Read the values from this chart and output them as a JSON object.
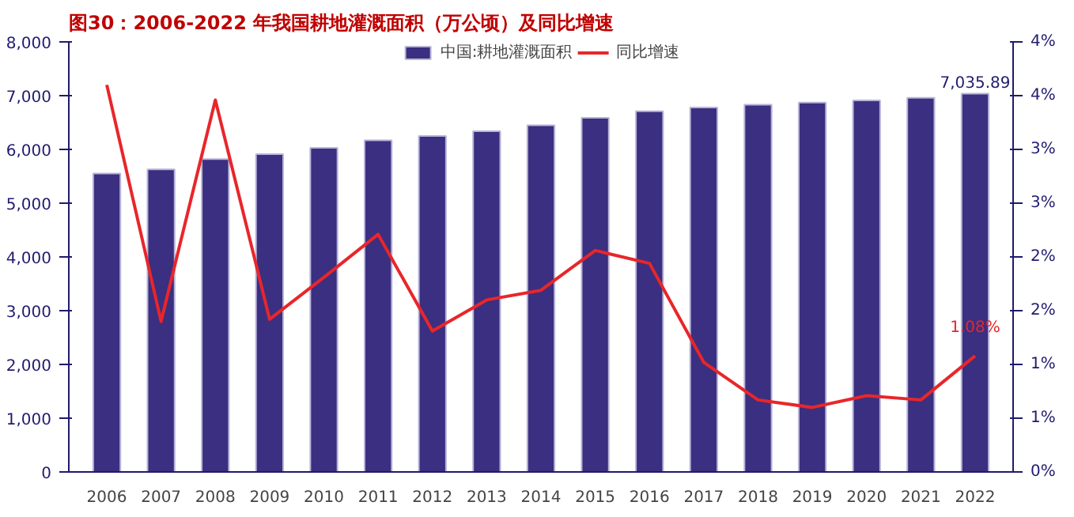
{
  "chart_data": {
    "type": "bar",
    "title": "图30：2006-2022 年我国耕地灌溉面积（万公顷）及同比增速",
    "categories": [
      "2006",
      "2007",
      "2008",
      "2009",
      "2010",
      "2011",
      "2012",
      "2013",
      "2014",
      "2015",
      "2016",
      "2017",
      "2018",
      "2019",
      "2020",
      "2021",
      "2022"
    ],
    "series": [
      {
        "name": "中国:耕地灌溉面积",
        "color": "#3a2f80",
        "values": [
          5550,
          5630,
          5820,
          5910,
          6030,
          6170,
          6250,
          6340,
          6450,
          6590,
          6710,
          6780,
          6830,
          6870,
          6910,
          6960,
          7035.89
        ],
        "value_labels": [
          null,
          null,
          null,
          null,
          null,
          null,
          null,
          null,
          null,
          null,
          null,
          null,
          null,
          null,
          null,
          null,
          "7,035.89"
        ]
      },
      {
        "name": "同比增速",
        "type": "line",
        "axis": "y2",
        "color": "#e8262a",
        "values": [
          3.6,
          1.4,
          3.46,
          1.42,
          1.81,
          2.21,
          1.31,
          1.6,
          1.69,
          2.06,
          1.94,
          1.02,
          0.67,
          0.6,
          0.71,
          0.67,
          1.08
        ],
        "value_labels": [
          null,
          null,
          null,
          null,
          null,
          null,
          null,
          null,
          null,
          null,
          null,
          null,
          null,
          null,
          null,
          null,
          "1.08%"
        ]
      }
    ],
    "ylim": [
      0,
      8000
    ],
    "yticks": [
      {
        "value": 0,
        "label": "0"
      },
      {
        "value": 1000,
        "label": "1,000"
      },
      {
        "value": 2000,
        "label": "2,000"
      },
      {
        "value": 3000,
        "label": "3,000"
      },
      {
        "value": 4000,
        "label": "4,000"
      },
      {
        "value": 5000,
        "label": "5,000"
      },
      {
        "value": 6000,
        "label": "6,000"
      },
      {
        "value": 7000,
        "label": "7,000"
      },
      {
        "value": 8000,
        "label": "8,000"
      }
    ],
    "y2lim": [
      0,
      4
    ],
    "y2ticks": [
      {
        "value": 0,
        "label": "0%"
      },
      {
        "value": 0.5,
        "label": "1%"
      },
      {
        "value": 1,
        "label": "1%"
      },
      {
        "value": 1.5,
        "label": "2%"
      },
      {
        "value": 2,
        "label": "2%"
      },
      {
        "value": 2.5,
        "label": "3%"
      },
      {
        "value": 3,
        "label": "3%"
      },
      {
        "value": 3.5,
        "label": "4%"
      },
      {
        "value": 4,
        "label": "4%"
      }
    ],
    "legend": "top",
    "grid": false
  }
}
